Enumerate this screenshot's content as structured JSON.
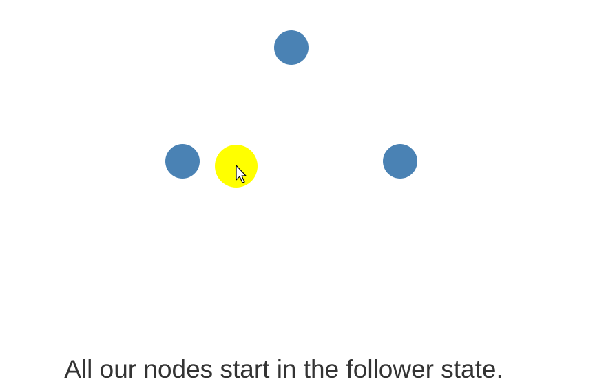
{
  "colors": {
    "node_fill": "#4a82b4",
    "highlight_fill": "#ffff00",
    "background": "#ffffff",
    "caption_text": "#333333"
  },
  "nodes": [
    {
      "name": "node-top",
      "state": "follower"
    },
    {
      "name": "node-left",
      "state": "follower"
    },
    {
      "name": "node-right",
      "state": "follower"
    }
  ],
  "cursor": {
    "icon": "mouse-pointer-icon",
    "highlight": "cursor-highlight"
  },
  "caption": "All our nodes start in the follower state."
}
